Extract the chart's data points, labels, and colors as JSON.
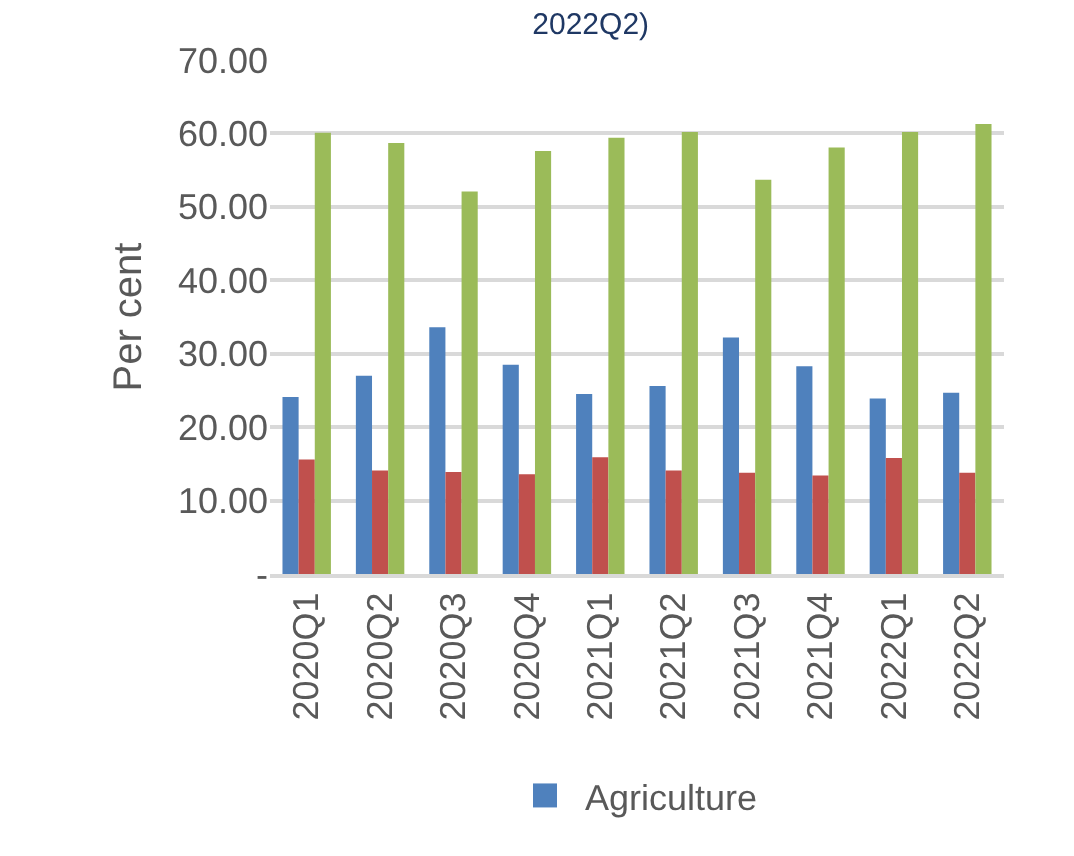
{
  "chart_data": {
    "type": "bar",
    "title": "2022Q2)",
    "ylabel": "Per cent",
    "categories": [
      "2020Q1",
      "2020Q2",
      "2020Q3",
      "2020Q4",
      "2021Q1",
      "2021Q2",
      "2021Q3",
      "2021Q4",
      "2022Q1",
      "2022Q2"
    ],
    "series": [
      {
        "name": "Agriculture",
        "color": "#4f81bd",
        "values": [
          24.1,
          27.0,
          33.6,
          28.5,
          24.5,
          25.6,
          32.2,
          28.3,
          23.9,
          24.7
        ]
      },
      {
        "color": "#c0504d",
        "values": [
          15.6,
          14.1,
          13.9,
          13.6,
          15.9,
          14.1,
          13.8,
          13.4,
          15.8,
          13.8
        ]
      },
      {
        "color": "#9bbb59",
        "values": [
          60.1,
          58.7,
          52.1,
          57.6,
          59.4,
          60.2,
          53.7,
          58.1,
          60.2,
          61.3
        ]
      }
    ],
    "ylim": [
      0,
      70
    ],
    "yticks": [
      {
        "value": 0,
        "label": "-"
      },
      {
        "value": 10,
        "label": "10.00"
      },
      {
        "value": 20,
        "label": "20.00"
      },
      {
        "value": 30,
        "label": "30.00"
      },
      {
        "value": 40,
        "label": "40.00"
      },
      {
        "value": 50,
        "label": "50.00"
      },
      {
        "value": 60,
        "label": "60.00"
      },
      {
        "value": 70,
        "label": "70.00"
      }
    ],
    "grid": "y",
    "legend": "bottom"
  }
}
